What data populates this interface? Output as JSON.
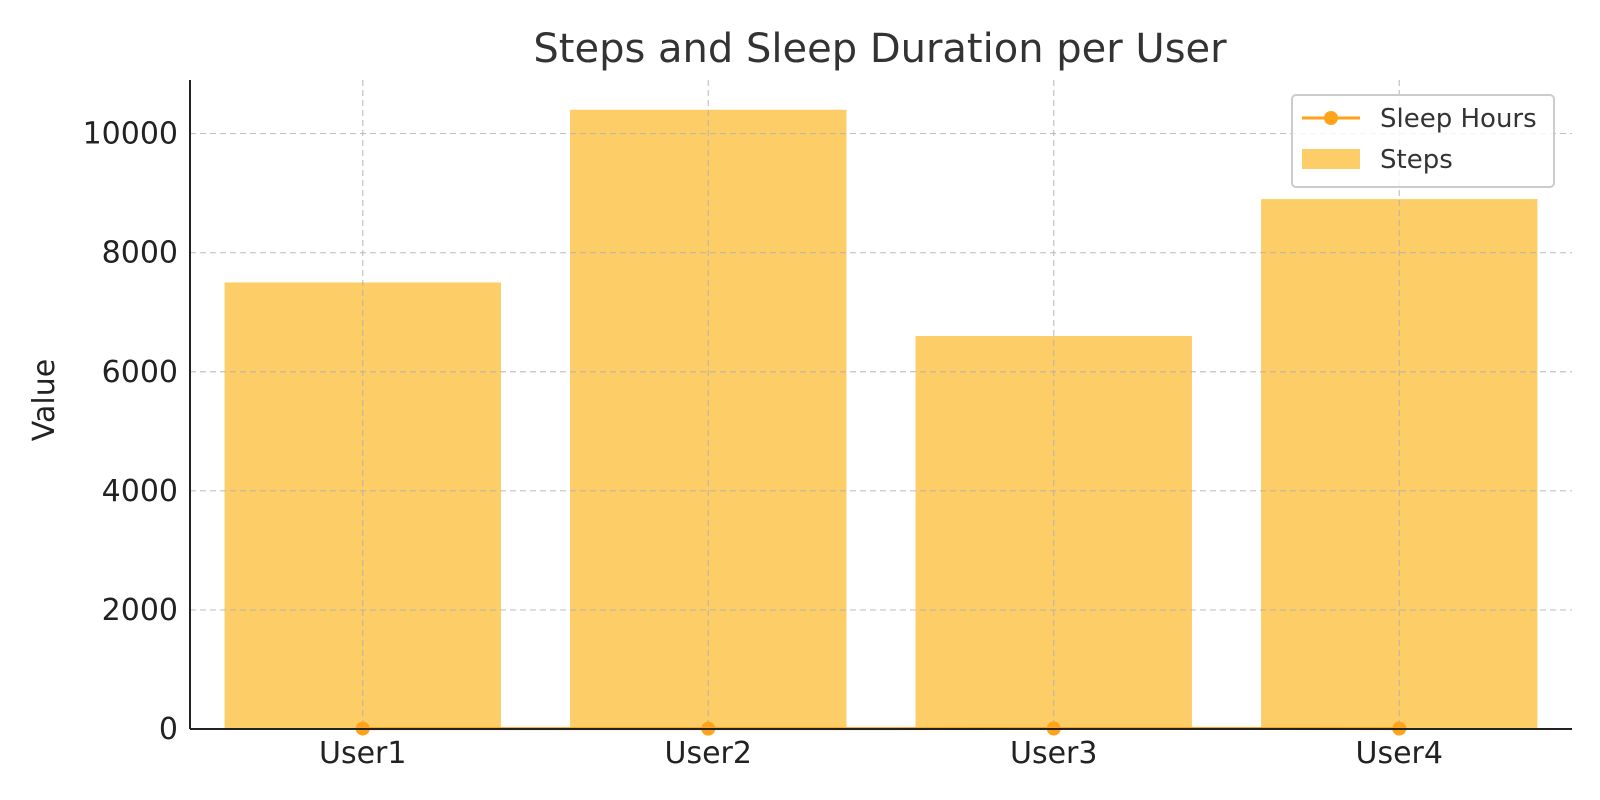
{
  "chart_data": {
    "type": "bar",
    "title": "Steps and Sleep Duration per User",
    "xlabel": "",
    "ylabel": "Value",
    "categories": [
      "User1",
      "User2",
      "User3",
      "User4"
    ],
    "ylim": [
      0,
      10900
    ],
    "yticks": [
      0,
      2000,
      4000,
      6000,
      8000,
      10000
    ],
    "grid": true,
    "legend": "top-right",
    "series": [
      {
        "name": "Steps",
        "kind": "bar",
        "color": "#fdcd68",
        "values": [
          7500,
          10400,
          6600,
          8900
        ]
      },
      {
        "name": "Sleep Hours",
        "kind": "line",
        "color": "#ffa31a",
        "values": [
          7,
          6,
          8,
          7
        ]
      }
    ]
  }
}
